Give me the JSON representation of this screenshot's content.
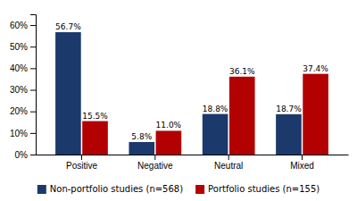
{
  "chart_data": {
    "type": "bar",
    "categories": [
      "Positive",
      "Negative",
      "Neutral",
      "Mixed"
    ],
    "series": [
      {
        "name": "Non-portfolio studies (n=568)",
        "color": "#1b3a6b",
        "values": [
          56.7,
          5.8,
          18.8,
          18.7
        ],
        "value_labels": [
          "56.7%",
          "5.8%",
          "18.8%",
          "18.7%"
        ]
      },
      {
        "name": "Portfolio studies (n=155)",
        "color": "#b30000",
        "values": [
          15.5,
          11.0,
          36.1,
          37.4
        ],
        "value_labels": [
          "15.5%",
          "11.0%",
          "36.1%",
          "37.4%"
        ]
      }
    ],
    "ylim": [
      0,
      65
    ],
    "yticks": [
      {
        "value": 0,
        "label": "0%"
      },
      {
        "value": 10,
        "label": "10%"
      },
      {
        "value": 20,
        "label": "20%"
      },
      {
        "value": 30,
        "label": "30%"
      },
      {
        "value": 40,
        "label": "40%"
      },
      {
        "value": 50,
        "label": "50%"
      },
      {
        "value": 60,
        "label": "60%"
      }
    ],
    "grid": false,
    "data_labels": true,
    "legend": "bottom"
  }
}
